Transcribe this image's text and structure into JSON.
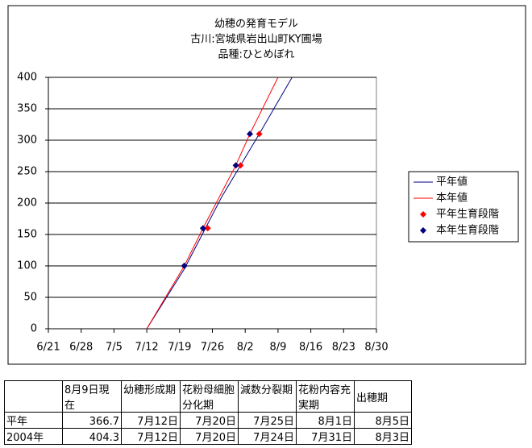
{
  "chart_data": {
    "type": "line",
    "title": [
      "幼穂の発育モデル",
      "古川:宮城県岩出山町KY圃場",
      "品種:ひとめぼれ"
    ],
    "xlim": [
      "6/21",
      "8/30"
    ],
    "xticks": [
      "6/21",
      "6/28",
      "7/5",
      "7/12",
      "7/19",
      "7/26",
      "8/2",
      "8/9",
      "8/16",
      "8/23",
      "8/30"
    ],
    "ylim": [
      0,
      400
    ],
    "yticks": [
      0,
      50,
      100,
      150,
      200,
      250,
      300,
      350,
      400
    ],
    "grid": true,
    "legend": "right",
    "series": [
      {
        "name": "平年値",
        "type": "line",
        "color": "#000080",
        "x": [
          "7/12",
          "7/20",
          "7/28",
          "8/5",
          "8/12"
        ],
        "values": [
          0,
          95,
          210,
          310,
          400
        ]
      },
      {
        "name": "本年値",
        "type": "line",
        "color": "#ff0000",
        "x": [
          "7/12",
          "7/20",
          "7/24",
          "7/31",
          "8/3",
          "8/9"
        ],
        "values": [
          0,
          100,
          160,
          260,
          310,
          400
        ]
      },
      {
        "name": "平年生育段階",
        "type": "scatter",
        "color": "#ff0000",
        "x": [
          "7/20",
          "7/25",
          "8/1",
          "8/5"
        ],
        "values": [
          100,
          160,
          260,
          310
        ]
      },
      {
        "name": "本年生育段階",
        "type": "scatter",
        "color": "#000080",
        "x": [
          "7/20",
          "7/24",
          "7/31",
          "8/3"
        ],
        "values": [
          100,
          160,
          260,
          310
        ]
      }
    ]
  },
  "table": {
    "header": [
      "",
      "8月9日現在",
      "幼穂形成期",
      "花粉母細胞分化期",
      "減数分裂期",
      "花粉内容充実期",
      "出穂期"
    ],
    "rows": [
      [
        "平年",
        "366.7",
        "7月12日",
        "7月20日",
        "7月25日",
        "8月1日",
        "8月5日"
      ],
      [
        "2004年",
        "404.3",
        "7月12日",
        "7月20日",
        "7月24日",
        "7月31日",
        "8月3日"
      ]
    ]
  }
}
